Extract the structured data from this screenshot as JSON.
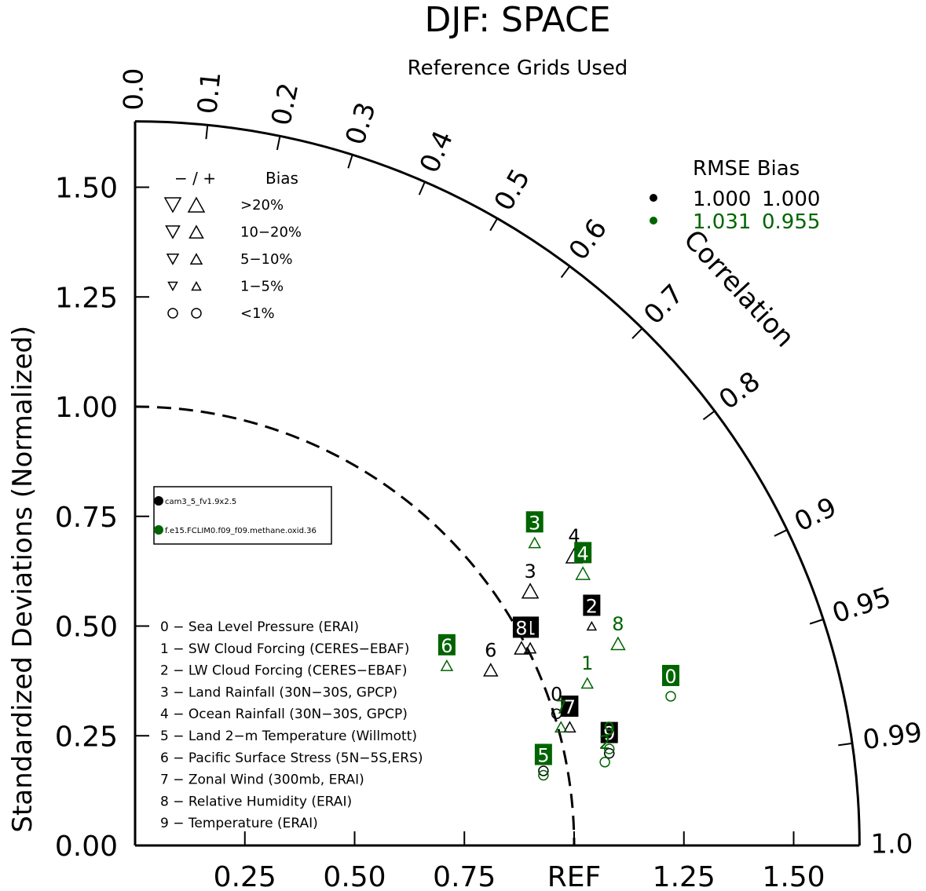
{
  "title": "DJF: SPACE",
  "subtitle": "Reference Grids Used",
  "chart_data": {
    "type": "scatter",
    "subtype": "taylor-diagram",
    "title": "DJF: SPACE",
    "subtitle": "Reference Grids Used",
    "ylabel": "Standardized Deviations (Normalized)",
    "corr_label": "Correlation",
    "ref_label": "REF",
    "xlim": [
      0,
      1.65
    ],
    "ylim": [
      0,
      1.65
    ],
    "y_ticks": [
      "0.00",
      "0.25",
      "0.50",
      "0.75",
      "1.00",
      "1.25",
      "1.50"
    ],
    "x_ticks": [
      "0.25",
      "0.50",
      "0.75",
      "REF",
      "1.25",
      "1.50"
    ],
    "corr_ticks": [
      "0.0",
      "0.1",
      "0.2",
      "0.3",
      "0.4",
      "0.5",
      "0.6",
      "0.7",
      "0.8",
      "0.9",
      "0.95",
      "0.99",
      "1.0"
    ],
    "grid": false,
    "bias_legend": {
      "header_signs": "− / +",
      "header_bias": "Bias",
      "rows": [
        ">20%",
        "10−20%",
        "5−10%",
        "1−5%",
        "<1%"
      ]
    },
    "rmse_table": {
      "header": "RMSE  Bias",
      "rows": [
        {
          "color": "#000000",
          "rmse": "1.000",
          "bias": "1.000"
        },
        {
          "color": "#006400",
          "rmse": "1.031",
          "bias": "0.955"
        }
      ]
    },
    "series": [
      {
        "name": "cam3_5_fv1.9x2.5",
        "color": "#000000",
        "points": [
          {
            "id": "0",
            "x": 0.96,
            "y": 0.3,
            "bias_dir": "+",
            "bias_class": "<1%"
          },
          {
            "id": "1",
            "x": 0.9,
            "y": 0.45,
            "bias_dir": "+",
            "bias_class": "5−10%"
          },
          {
            "id": "2",
            "x": 1.04,
            "y": 0.5,
            "bias_dir": "+",
            "bias_class": "1−5%"
          },
          {
            "id": "3",
            "x": 0.9,
            "y": 0.58,
            "bias_dir": "+",
            "bias_class": ">20%"
          },
          {
            "id": "4",
            "x": 1.0,
            "y": 0.66,
            "bias_dir": "+",
            "bias_class": ">20%"
          },
          {
            "id": "5",
            "x": 0.93,
            "y": 0.17,
            "bias_dir": "+",
            "bias_class": "<1%"
          },
          {
            "id": "6",
            "x": 0.81,
            "y": 0.4,
            "bias_dir": "+",
            "bias_class": "10−20%"
          },
          {
            "id": "7",
            "x": 0.99,
            "y": 0.27,
            "bias_dir": "+",
            "bias_class": "5−10%"
          },
          {
            "id": "8",
            "x": 0.88,
            "y": 0.45,
            "bias_dir": "+",
            "bias_class": "10−20%"
          },
          {
            "id": "9",
            "x": 1.08,
            "y": 0.21,
            "bias_dir": "+",
            "bias_class": "<1%"
          }
        ]
      },
      {
        "name": "f.e15.FCLIM0.f09_f09.methane.oxid.36",
        "color": "#006400",
        "points": [
          {
            "id": "0",
            "x": 1.22,
            "y": 0.34,
            "bias_dir": "+",
            "bias_class": "<1%"
          },
          {
            "id": "1",
            "x": 1.03,
            "y": 0.37,
            "bias_dir": "+",
            "bias_class": "5−10%"
          },
          {
            "id": "2",
            "x": 1.07,
            "y": 0.19,
            "bias_dir": "+",
            "bias_class": "<1%"
          },
          {
            "id": "3",
            "x": 0.91,
            "y": 0.69,
            "bias_dir": "+",
            "bias_class": "5−10%"
          },
          {
            "id": "4",
            "x": 1.02,
            "y": 0.62,
            "bias_dir": "+",
            "bias_class": "10−20%"
          },
          {
            "id": "5",
            "x": 0.93,
            "y": 0.16,
            "bias_dir": "+",
            "bias_class": "<1%"
          },
          {
            "id": "6",
            "x": 0.71,
            "y": 0.41,
            "bias_dir": "+",
            "bias_class": "5−10%"
          },
          {
            "id": "7",
            "x": 0.97,
            "y": 0.27,
            "bias_dir": "+",
            "bias_class": "5−10%"
          },
          {
            "id": "8",
            "x": 1.1,
            "y": 0.46,
            "bias_dir": "+",
            "bias_class": "10−20%"
          },
          {
            "id": "9",
            "x": 1.08,
            "y": 0.22,
            "bias_dir": "+",
            "bias_class": "<1%"
          }
        ]
      }
    ],
    "variables": [
      "0 − Sea Level Pressure (ERAI)",
      "1 − SW Cloud Forcing (CERES−EBAF)",
      "2 − LW Cloud Forcing (CERES−EBAF)",
      "3 − Land Rainfall (30N−30S, GPCP)",
      "4 − Ocean Rainfall (30N−30S, GPCP)",
      "5 − Land 2−m Temperature (Willmott)",
      "6 − Pacific Surface Stress (5N−5S,ERS)",
      "7 − Zonal Wind (300mb, ERAI)",
      "8 − Relative Humidity (ERAI)",
      "9 − Temperature (ERAI)"
    ]
  }
}
